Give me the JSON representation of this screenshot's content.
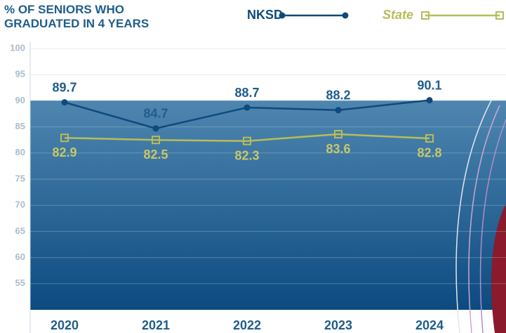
{
  "chart_data": {
    "type": "line",
    "title": "% OF SENIORS WHO GRADUATED IN 4 YEARS",
    "categories": [
      "2020",
      "2021",
      "2022",
      "2023",
      "2024"
    ],
    "series": [
      {
        "name": "NKSD",
        "color": "#0e4a7b",
        "marker": "circle",
        "values": [
          89.7,
          84.7,
          88.7,
          88.2,
          90.1
        ]
      },
      {
        "name": "State",
        "color": "#b7bd58",
        "marker": "square",
        "values": [
          82.9,
          82.5,
          82.3,
          83.6,
          82.8
        ]
      }
    ],
    "ylim": [
      50,
      100
    ],
    "yticks": [
      55,
      60,
      65,
      70,
      75,
      80,
      85,
      90,
      95,
      100
    ],
    "grid": true
  }
}
